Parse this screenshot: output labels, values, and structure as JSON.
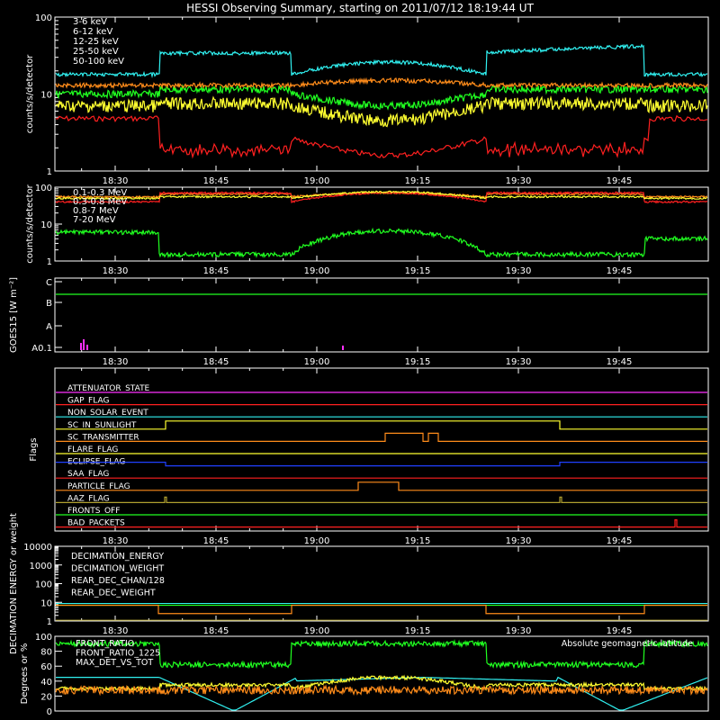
{
  "title": "HESSI Observing Summary, starting on 2011/07/12 18:19:44 UT",
  "colors": {
    "background": "#000000",
    "axes": "#ffffff",
    "red": "#ff2020",
    "orange": "#ff8c1a",
    "yellow": "#ffff30",
    "green": "#20ff20",
    "cyan": "#30f0f0",
    "magenta": "#ff30ff",
    "blue": "#2040ff",
    "olive": "#b0a030",
    "teal": "#40d0b0"
  },
  "chart_data": [
    {
      "type": "line",
      "ylabel": "counts/s/detector",
      "scale": "log",
      "ylim": [
        1,
        100
      ],
      "ytick_labels": [
        "100",
        "10",
        "1"
      ],
      "x_tick_labels": [
        "18:30",
        "18:45",
        "19:00",
        "19:15",
        "19:30",
        "19:45"
      ],
      "legend": [
        "3-6 keV",
        "6-12 keV",
        "12-25 keV",
        "25-50 keV",
        "50-100 keV"
      ],
      "series": [
        {
          "name": "3-6 keV",
          "color": "red",
          "approx_level": "5 counts/s outside shaded gaps, dropping to 1-2 during 18:36-19:27"
        },
        {
          "name": "6-12 keV",
          "color": "orange",
          "approx_level": "12-15"
        },
        {
          "name": "12-25 keV",
          "color": "yellow",
          "approx_level": "6-10"
        },
        {
          "name": "25-50 keV",
          "color": "green",
          "approx_level": "8-12"
        },
        {
          "name": "50-100 keV",
          "color": "cyan",
          "approx_level": "20-40"
        }
      ]
    },
    {
      "type": "line",
      "ylabel": "counts/s/detector",
      "scale": "log",
      "ylim": [
        1,
        100
      ],
      "ytick_labels": [
        "100",
        "10",
        "1"
      ],
      "x_tick_labels": [
        "18:30",
        "18:45",
        "19:00",
        "19:15",
        "19:30",
        "19:45"
      ],
      "legend": [
        "0.1-0.3 MeV",
        "0.3-0.8 MeV",
        "0.8-7 MeV",
        "7-20 MeV"
      ],
      "series": [
        {
          "name": "0.1-0.3 MeV",
          "color": "orange",
          "approx_level": "50-80"
        },
        {
          "name": "0.3-0.8 MeV",
          "color": "red",
          "approx_level": "40-80"
        },
        {
          "name": "0.8-7 MeV",
          "color": "yellow",
          "approx_level": "40-80"
        },
        {
          "name": "7-20 MeV",
          "color": "green",
          "approx_level": "1-8"
        }
      ]
    },
    {
      "type": "line",
      "ylabel": "GOES15 [W m⁻²]",
      "ytick_labels": [
        "C",
        "B",
        "A",
        "A0.1"
      ],
      "x_tick_labels": [
        "18:30",
        "18:45",
        "19:00",
        "19:15",
        "19:30",
        "19:45"
      ]
    },
    {
      "type": "line",
      "ylabel": "Flags",
      "x_tick_labels": [
        "18:30",
        "18:45",
        "19:00",
        "19:15",
        "19:30",
        "19:45"
      ],
      "flags": [
        {
          "name": "ATTENUATOR_STATE",
          "color": "magenta"
        },
        {
          "name": "GAP_FLAG",
          "color": "red"
        },
        {
          "name": "NON_SOLAR_EVENT",
          "color": "cyan"
        },
        {
          "name": "SC_IN_SUNLIGHT",
          "color": "yellow"
        },
        {
          "name": "SC_TRANSMITTER",
          "color": "orange"
        },
        {
          "name": "FLARE_FLAG",
          "color": "yellow"
        },
        {
          "name": "ECLIPSE_FLAG",
          "color": "blue"
        },
        {
          "name": "SAA_FLAG",
          "color": "red"
        },
        {
          "name": "PARTICLE_FLAG",
          "color": "orange"
        },
        {
          "name": "AAZ_FLAG",
          "color": "olive"
        },
        {
          "name": "FRONTS_OFF",
          "color": "green"
        },
        {
          "name": "BAD_PACKETS",
          "color": "red"
        }
      ]
    },
    {
      "type": "line",
      "ylabel": "DECIMATION ENERGY or weight",
      "scale": "log",
      "ytick_labels": [
        "10000",
        "1000",
        "100",
        "10",
        "1"
      ],
      "x_tick_labels": [
        "18:30",
        "18:45",
        "19:00",
        "19:15",
        "19:30",
        "19:45"
      ],
      "legend": [
        "DECIMATION_ENERGY",
        "DECIMATION_WEIGHT",
        "REAR_DEC_CHAN/128",
        "REAR_DEC_WEIGHT"
      ]
    },
    {
      "type": "line",
      "ylabel": "Degrees or %",
      "ylim": [
        0,
        100
      ],
      "ytick_labels": [
        "100",
        "80",
        "60",
        "40",
        "20",
        "0"
      ],
      "legend": [
        "FRONT_RATIO",
        "FRONT_RATIO_1225",
        "MAX_DET_VS_TOT",
        "Absolute geomagnetic latitude"
      ]
    }
  ]
}
